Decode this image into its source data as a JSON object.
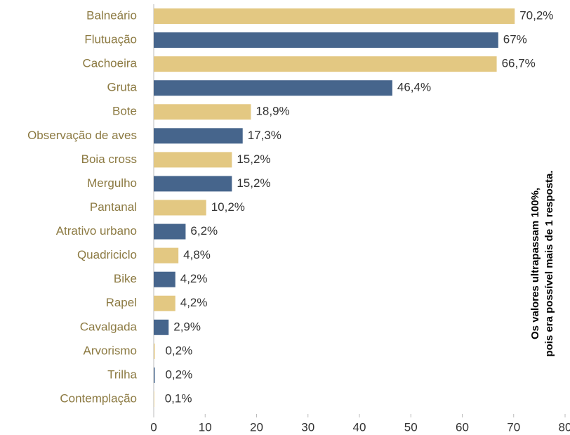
{
  "chart_data": {
    "type": "barh",
    "categories": [
      "Balneário",
      "Flutuação",
      "Cachoeira",
      "Gruta",
      "Bote",
      "Observação de aves",
      "Boia cross",
      "Mergulho",
      "Pantanal",
      "Atrativo urbano",
      "Quadriciclo",
      "Bike",
      "Rapel",
      "Cavalgada",
      "Arvorismo",
      "Trilha",
      "Contemplação"
    ],
    "values": [
      70.2,
      67,
      66.7,
      46.4,
      18.9,
      17.3,
      15.2,
      15.2,
      10.2,
      6.2,
      4.8,
      4.2,
      4.2,
      2.9,
      0.2,
      0.2,
      0.1
    ],
    "value_labels": [
      "70,2%",
      "67%",
      "66,7%",
      "46,4%",
      "18,9%",
      "17,3%",
      "15,2%",
      "15,2%",
      "10,2%",
      "6,2%",
      "4,8%",
      "4,2%",
      "4,2%",
      "2,9%",
      "0,2%",
      "0,2%",
      "0,1%"
    ],
    "colors": [
      "#e3c882",
      "#46658c",
      "#e3c882",
      "#46658c",
      "#e3c882",
      "#46658c",
      "#e3c882",
      "#46658c",
      "#e3c882",
      "#46658c",
      "#e3c882",
      "#46658c",
      "#e3c882",
      "#46658c",
      "#e3c882",
      "#46658c",
      "#e3c882"
    ],
    "xlim": [
      0,
      80
    ],
    "xticks": [
      0,
      10,
      20,
      30,
      40,
      50,
      60,
      70,
      80
    ],
    "annotation": [
      "Os valores ultrapassam 100%,",
      "pois era possível mais de 1 resposta."
    ]
  }
}
